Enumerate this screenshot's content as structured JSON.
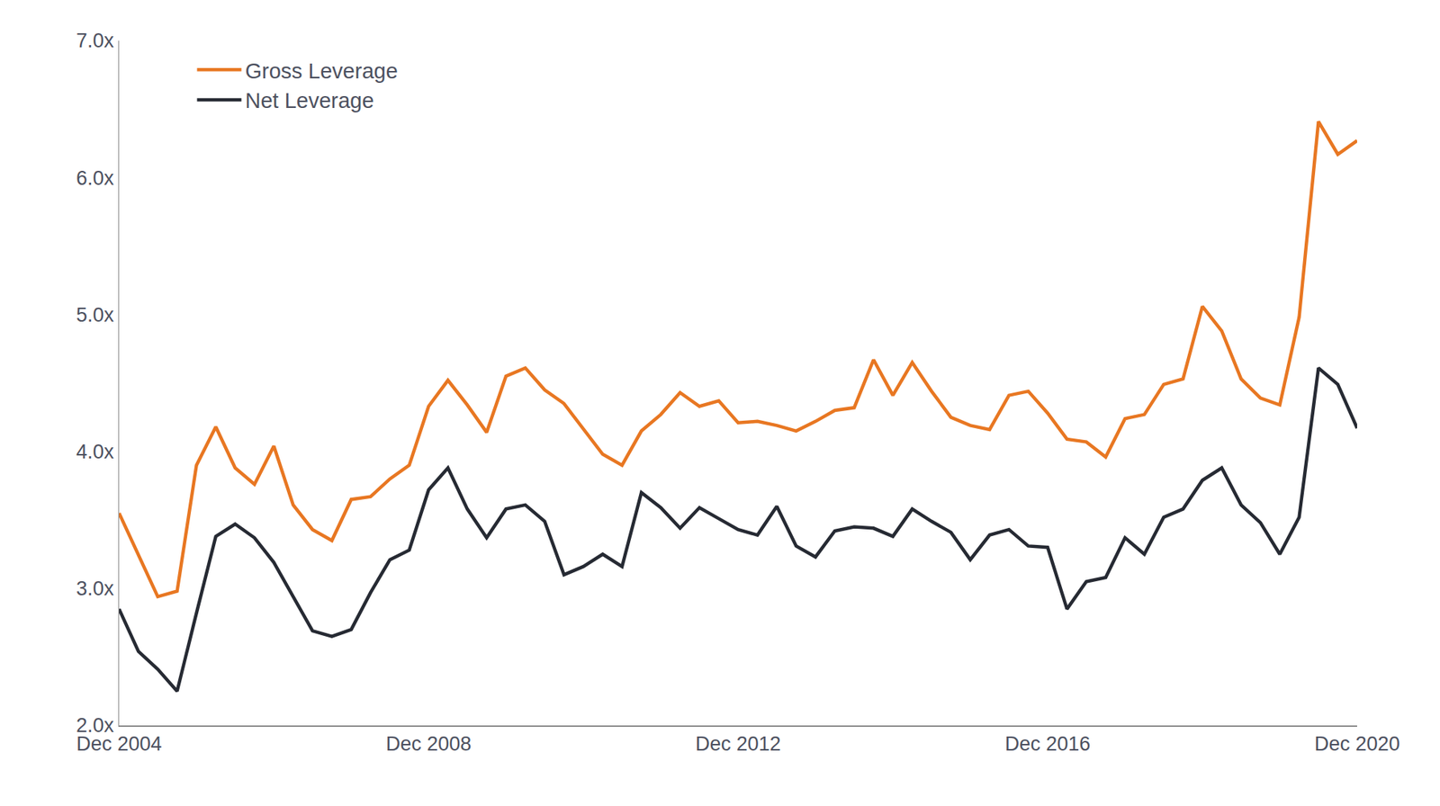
{
  "chart_data": {
    "type": "line",
    "categories": [
      "Dec 2004",
      null,
      null,
      null,
      null,
      null,
      null,
      null,
      null,
      null,
      null,
      null,
      null,
      null,
      null,
      null,
      "Dec 2008",
      null,
      null,
      null,
      null,
      null,
      null,
      null,
      null,
      null,
      null,
      null,
      null,
      null,
      null,
      null,
      "Dec 2012",
      null,
      null,
      null,
      null,
      null,
      null,
      null,
      null,
      null,
      null,
      null,
      null,
      null,
      null,
      null,
      "Dec 2016",
      null,
      null,
      null,
      null,
      null,
      null,
      null,
      null,
      null,
      null,
      null,
      null,
      null,
      null,
      null,
      "Dec 2020"
    ],
    "series": [
      {
        "name": "Gross Leverage",
        "color": "#e87722",
        "line_style": "solid",
        "values": [
          3.55,
          3.25,
          2.94,
          2.98,
          3.9,
          4.18,
          3.88,
          3.76,
          4.04,
          3.61,
          3.43,
          3.35,
          3.65,
          3.67,
          3.8,
          3.9,
          4.33,
          4.52,
          4.34,
          4.14,
          4.55,
          4.61,
          4.45,
          4.35,
          4.16,
          3.98,
          3.9,
          4.15,
          4.27,
          4.43,
          4.33,
          4.37,
          4.21,
          4.22,
          4.19,
          4.15,
          4.22,
          4.3,
          4.32,
          4.67,
          4.41,
          4.65,
          4.44,
          4.25,
          4.19,
          4.16,
          4.41,
          4.44,
          4.28,
          4.09,
          4.07,
          3.96,
          4.24,
          4.27,
          4.49,
          4.53,
          5.06,
          4.88,
          4.53,
          4.39,
          4.34,
          4.98,
          6.41,
          6.17,
          6.27
        ]
      },
      {
        "name": "Net Leverage",
        "color": "#262a33",
        "line_style": "solid",
        "values": [
          2.85,
          2.54,
          2.41,
          2.25,
          2.82,
          3.38,
          3.47,
          3.37,
          3.19,
          2.94,
          2.69,
          2.65,
          2.7,
          2.97,
          3.21,
          3.28,
          3.72,
          3.88,
          3.58,
          3.37,
          3.58,
          3.61,
          3.49,
          3.1,
          3.16,
          3.25,
          3.16,
          3.7,
          3.59,
          3.44,
          3.59,
          3.51,
          3.43,
          3.39,
          3.6,
          3.31,
          3.23,
          3.42,
          3.45,
          3.44,
          3.38,
          3.58,
          3.49,
          3.41,
          3.21,
          3.39,
          3.43,
          3.31,
          3.3,
          2.85,
          3.05,
          3.08,
          3.37,
          3.25,
          3.52,
          3.58,
          3.79,
          3.88,
          3.61,
          3.48,
          3.25,
          3.52,
          4.61,
          4.49,
          4.17
        ]
      }
    ],
    "ylim": [
      2.0,
      7.0
    ],
    "yticks": [
      {
        "value": 2.0,
        "label": "2.0x"
      },
      {
        "value": 3.0,
        "label": "3.0x"
      },
      {
        "value": 4.0,
        "label": "4.0x"
      },
      {
        "value": 5.0,
        "label": "5.0x"
      },
      {
        "value": 6.0,
        "label": "6.0x"
      },
      {
        "value": 7.0,
        "label": "7.0x"
      }
    ],
    "grid": false,
    "legend": "top-left"
  }
}
